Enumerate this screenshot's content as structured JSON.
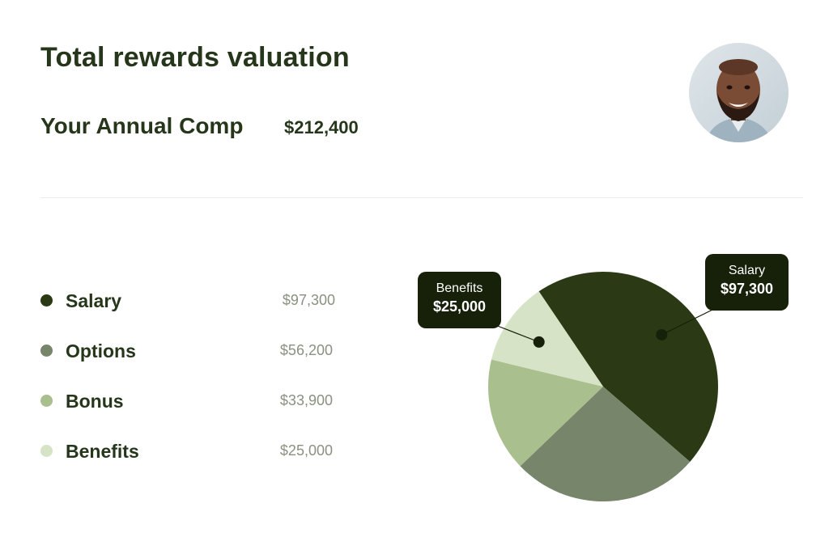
{
  "header": {
    "title": "Total rewards valuation",
    "comp_label": "Your Annual Comp",
    "comp_value": "$212,400"
  },
  "legend": [
    {
      "label": "Salary",
      "value": "$97,300",
      "color": "#2b3a15"
    },
    {
      "label": "Options",
      "value": "$56,200",
      "color": "#77866b"
    },
    {
      "label": "Bonus",
      "value": "$33,900",
      "color": "#a9bf8e"
    },
    {
      "label": "Benefits",
      "value": "$25,000",
      "color": "#d7e3c7"
    }
  ],
  "tooltips": {
    "benefits": {
      "name": "Benefits",
      "value": "$25,000"
    },
    "salary": {
      "name": "Salary",
      "value": "$97,300"
    }
  },
  "chart_data": {
    "type": "pie",
    "labels": [
      "Salary",
      "Options",
      "Bonus",
      "Benefits"
    ],
    "values": [
      97300,
      56200,
      33900,
      25000
    ],
    "colors": [
      "#2b3a15",
      "#77866b",
      "#a9bf8e",
      "#d7e3c7"
    ],
    "total": 212400
  }
}
